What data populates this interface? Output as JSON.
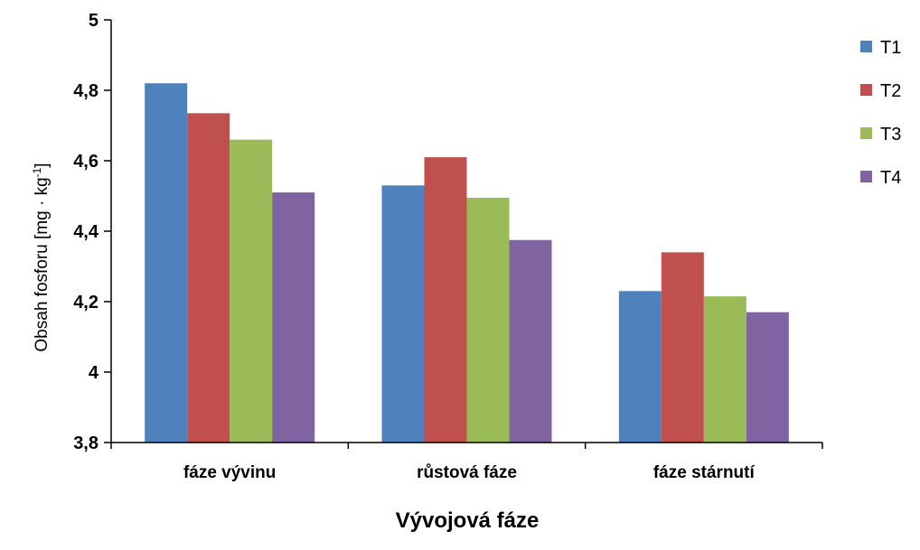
{
  "chart_data": {
    "type": "bar",
    "categories": [
      "fáze vývinu",
      "růstová fáze",
      "fáze stárnutí"
    ],
    "series": [
      {
        "name": "T1",
        "values": [
          4.82,
          4.53,
          4.23
        ],
        "color": "#4f81bd"
      },
      {
        "name": "T2",
        "values": [
          4.735,
          4.61,
          4.34
        ],
        "color": "#c0504d"
      },
      {
        "name": "T3",
        "values": [
          4.66,
          4.495,
          4.215
        ],
        "color": "#9bbb59"
      },
      {
        "name": "T4",
        "values": [
          4.51,
          4.375,
          4.17
        ],
        "color": "#8064a2"
      }
    ],
    "ylim": [
      3.8,
      5
    ],
    "yticks": [
      "3,8",
      "4",
      "4,2",
      "4,4",
      "4,6",
      "4,8",
      "5"
    ],
    "ytick_values": [
      3.8,
      4.0,
      4.2,
      4.4,
      4.6,
      4.8,
      5.0
    ],
    "ylabel_main": "Obsah fosforu [mg · kg",
    "ylabel_sup": "-1",
    "ylabel_end": "]",
    "xlabel": "Vývojová fáze",
    "grid": false,
    "legend_position": "right"
  }
}
